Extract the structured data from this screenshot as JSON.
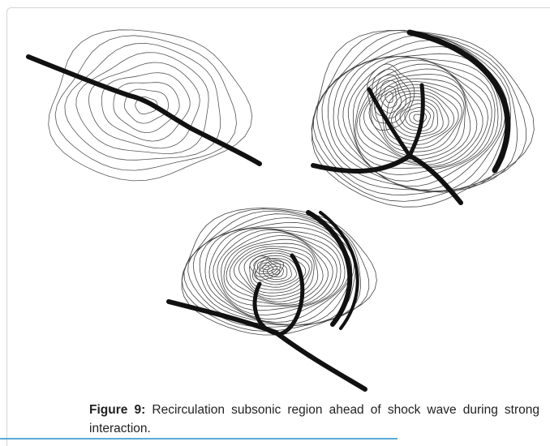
{
  "figure": {
    "label": "Figure 9:",
    "caption": "Recirculation subsonic region ahead of shock wave during strong interaction."
  }
}
